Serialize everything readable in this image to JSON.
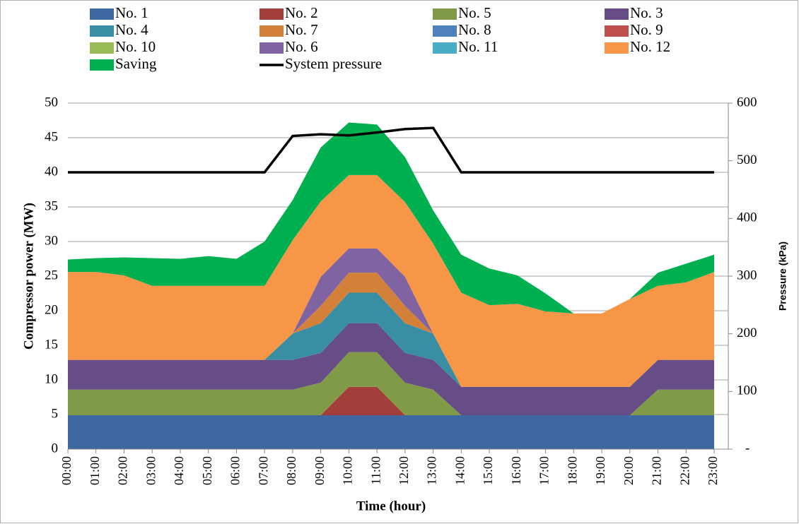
{
  "chart_data": {
    "type": "area",
    "stacked": true,
    "x_label": "Time (hour)",
    "y_label": "Compressor power (MW)",
    "y2_label": "Pressure (kPa)",
    "categories": [
      "00:00",
      "01:00",
      "02:00",
      "03:00",
      "04:00",
      "05:00",
      "06:00",
      "07:00",
      "08:00",
      "09:00",
      "10:00",
      "11:00",
      "12:00",
      "13:00",
      "14:00",
      "15:00",
      "16:00",
      "17:00",
      "18:00",
      "19:00",
      "20:00",
      "21:00",
      "22:00",
      "23:00"
    ],
    "ylim": [
      0,
      50
    ],
    "yticks": [
      0,
      5,
      10,
      15,
      20,
      25,
      30,
      35,
      40,
      45,
      50
    ],
    "y2lim": [
      0,
      600
    ],
    "y2ticks": [
      {
        "value": 0,
        "label": "-"
      },
      100,
      200,
      300,
      400,
      500,
      600
    ],
    "grid": true,
    "legend": "top",
    "series": [
      {
        "name": "No. 1",
        "color": "#3f67a0",
        "values": [
          4.9,
          4.9,
          4.9,
          4.9,
          4.9,
          4.9,
          4.9,
          4.9,
          4.9,
          4.9,
          4.9,
          4.9,
          4.9,
          4.9,
          4.9,
          4.9,
          4.9,
          4.9,
          4.9,
          4.9,
          4.9,
          4.9,
          4.9,
          4.9
        ]
      },
      {
        "name": "No. 2",
        "color": "#a33f3b",
        "values": [
          0,
          0,
          0,
          0,
          0,
          0,
          0,
          0,
          0,
          0,
          4.1,
          4.1,
          0,
          0,
          0,
          0,
          0,
          0,
          0,
          0,
          0,
          0,
          0,
          0
        ]
      },
      {
        "name": "No. 5",
        "color": "#819a47",
        "values": [
          3.7,
          3.7,
          3.7,
          3.7,
          3.7,
          3.7,
          3.7,
          3.7,
          3.7,
          4.7,
          5.0,
          5.0,
          4.7,
          3.7,
          0,
          0,
          0,
          0,
          0,
          0,
          0,
          3.7,
          3.7,
          3.7
        ]
      },
      {
        "name": "No. 3",
        "color": "#674d86",
        "values": [
          4.3,
          4.3,
          4.3,
          4.3,
          4.3,
          4.3,
          4.3,
          4.3,
          4.3,
          4.3,
          4.2,
          4.2,
          4.3,
          4.3,
          4.1,
          4.1,
          4.1,
          4.1,
          4.1,
          4.1,
          4.1,
          4.3,
          4.3,
          4.3
        ]
      },
      {
        "name": "No. 4",
        "color": "#3a8ea3",
        "values": [
          0,
          0,
          0,
          0,
          0,
          0,
          0,
          0,
          3.8,
          4.3,
          4.4,
          4.4,
          4.3,
          3.8,
          0,
          0,
          0,
          0,
          0,
          0,
          0,
          0,
          0,
          0
        ]
      },
      {
        "name": "No. 7",
        "color": "#d3813a",
        "values": [
          0,
          0,
          0,
          0,
          0,
          0,
          0,
          0,
          0,
          2.5,
          2.9,
          2.9,
          2.5,
          0,
          0,
          0,
          0,
          0,
          0,
          0,
          0,
          0,
          0,
          0
        ]
      },
      {
        "name": "No. 8",
        "color": "#4f81bd",
        "values": [
          0,
          0,
          0,
          0,
          0,
          0,
          0,
          0,
          0,
          0,
          0,
          0,
          0,
          0,
          0,
          0,
          0,
          0,
          0,
          0,
          0,
          0,
          0,
          0
        ]
      },
      {
        "name": "No. 9",
        "color": "#c0504d",
        "values": [
          0,
          0,
          0,
          0,
          0,
          0,
          0,
          0,
          0,
          0,
          0,
          0,
          0,
          0,
          0,
          0,
          0,
          0,
          0,
          0,
          0,
          0,
          0,
          0
        ]
      },
      {
        "name": "No. 10",
        "color": "#9bbb59",
        "values": [
          0,
          0,
          0,
          0,
          0,
          0,
          0,
          0,
          0,
          0,
          0,
          0,
          0,
          0,
          0,
          0,
          0,
          0,
          0,
          0,
          0,
          0,
          0,
          0
        ]
      },
      {
        "name": "No. 6",
        "color": "#8064a2",
        "values": [
          0,
          0,
          0,
          0,
          0,
          0,
          0,
          0,
          0,
          4.2,
          3.5,
          3.5,
          4.2,
          0,
          0,
          0,
          0,
          0,
          0,
          0,
          0,
          0,
          0,
          0
        ]
      },
      {
        "name": "No. 11",
        "color": "#4bacc6",
        "values": [
          0,
          0,
          0,
          0,
          0,
          0,
          0,
          0,
          0,
          0,
          0,
          0,
          0,
          0,
          0,
          0,
          0,
          0,
          0,
          0,
          0,
          0,
          0,
          0
        ]
      },
      {
        "name": "No. 12",
        "color": "#f79646",
        "values": [
          12.7,
          12.7,
          12.2,
          10.7,
          10.7,
          10.7,
          10.7,
          10.7,
          13.5,
          10.9,
          10.6,
          10.6,
          10.8,
          13.0,
          13.6,
          11.8,
          12.0,
          10.9,
          10.6,
          10.6,
          12.7,
          10.7,
          11.2,
          12.7
        ]
      },
      {
        "name": "Saving",
        "color": "#00b050",
        "values": [
          1.8,
          2.0,
          2.6,
          4.0,
          3.9,
          4.3,
          3.9,
          6.4,
          5.8,
          7.8,
          7.6,
          7.3,
          6.5,
          4.8,
          5.5,
          5.3,
          4.1,
          2.6,
          0,
          0,
          0,
          1.9,
          2.7,
          2.5
        ]
      },
      {
        "name": "System pressure",
        "color": "#000000",
        "type": "line",
        "axis": "y2",
        "values": [
          480,
          480,
          480,
          480,
          480,
          480,
          480,
          480,
          543,
          546,
          544,
          549,
          555,
          557,
          480,
          480,
          480,
          480,
          480,
          480,
          480,
          480,
          480,
          480
        ]
      }
    ]
  }
}
